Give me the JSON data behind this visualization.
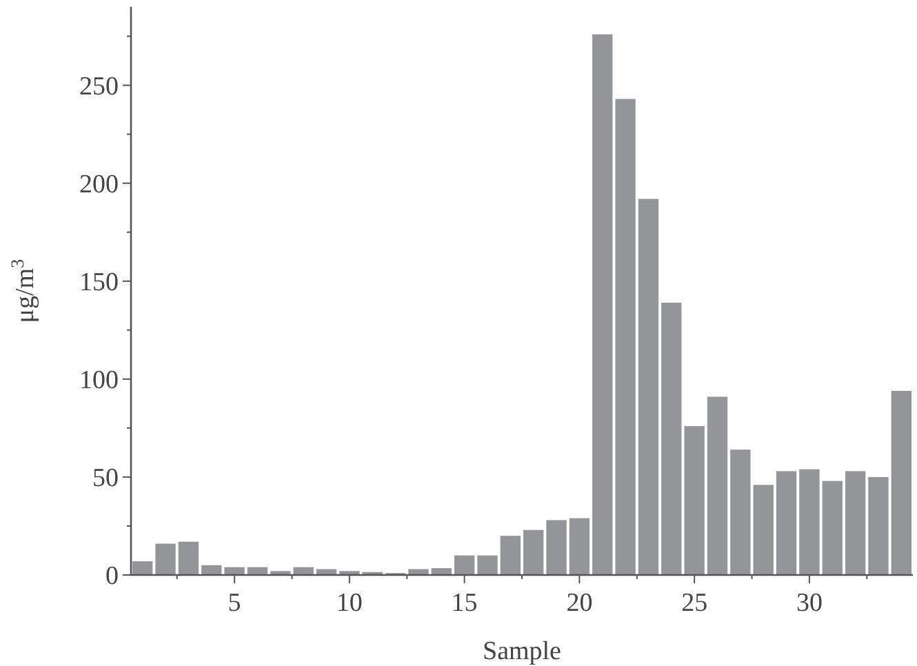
{
  "chart_data": {
    "type": "bar",
    "xlabel": "Sample",
    "ylabel": "μg/m$^{3}$",
    "color": "#939598",
    "x": [
      1,
      2,
      3,
      4,
      5,
      6,
      7,
      8,
      9,
      10,
      11,
      12,
      13,
      14,
      15,
      16,
      17,
      18,
      19,
      20,
      21,
      22,
      23,
      24,
      25,
      26,
      27,
      28,
      29,
      30,
      31,
      32,
      33,
      34
    ],
    "values": [
      7,
      16,
      17,
      5,
      4,
      4,
      2,
      4,
      3,
      2,
      1.5,
      1,
      3,
      3.5,
      10,
      10,
      20,
      23,
      28,
      29,
      276,
      243,
      192,
      139,
      76,
      91,
      64,
      46,
      53,
      54,
      48,
      53,
      50,
      94
    ],
    "xlim": [
      0.5,
      34.5
    ],
    "xticks": [
      {
        "value": 2.5,
        "label": null
      },
      5,
      {
        "value": 7.5,
        "label": null
      },
      10,
      {
        "value": 12.5,
        "label": null
      },
      15,
      {
        "value": 17.5,
        "label": null
      },
      20,
      {
        "value": 22.5,
        "label": null
      },
      25,
      {
        "value": 27.5,
        "label": null
      },
      30,
      {
        "value": 32.5,
        "label": null
      }
    ],
    "ylim": [
      0,
      290
    ],
    "yticks": [
      0,
      {
        "value": 25,
        "label": null
      },
      50,
      {
        "value": 75,
        "label": null
      },
      100,
      {
        "value": 125,
        "label": null
      },
      150,
      {
        "value": 175,
        "label": null
      },
      200,
      {
        "value": 225,
        "label": null
      },
      250,
      {
        "value": 275,
        "label": null
      }
    ],
    "grid": false
  }
}
